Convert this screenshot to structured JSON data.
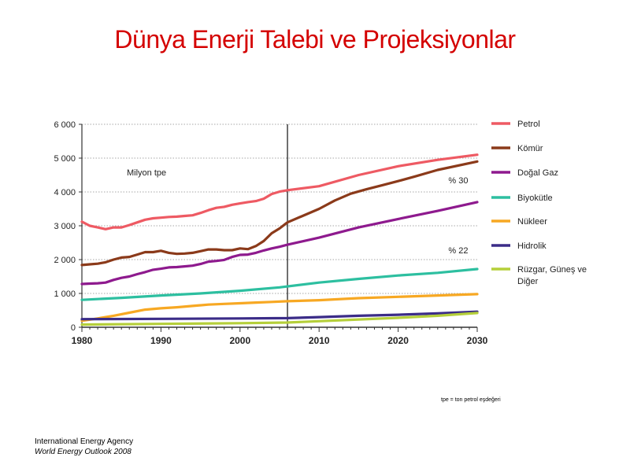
{
  "title": "Dünya Enerji Talebi ve Projeksiyonlar",
  "source": {
    "org": "International Energy Agency",
    "publication": "World Energy Outlook 2008"
  },
  "footnote": "tpe = ton petrol eşdeğeri",
  "chart_data": {
    "type": "line",
    "title": "",
    "unit_label": "Milyon tpe",
    "xlabel": "",
    "ylabel": "",
    "xlim": [
      1980,
      2030
    ],
    "ylim": [
      0,
      6000
    ],
    "x_ticks": [
      1980,
      1990,
      2000,
      2010,
      2020,
      2030
    ],
    "y_ticks": [
      0,
      1000,
      2000,
      3000,
      4000,
      5000,
      6000
    ],
    "y_tick_labels": [
      "0",
      "1 000",
      "2 000",
      "3 000",
      "4 000",
      "5 000",
      "6 000"
    ],
    "grid": "horizontal dotted",
    "legend": "right",
    "projection_start": 2006,
    "annotations": [
      {
        "text": "% 30",
        "x": 2028,
        "y": 4350
      },
      {
        "text": "% 22",
        "x": 2028,
        "y": 2280
      }
    ],
    "series": [
      {
        "name": "Petrol",
        "color": "#ee5a63",
        "x": [
          1980,
          1981,
          1982,
          1983,
          1984,
          1985,
          1986,
          1987,
          1988,
          1989,
          1990,
          1991,
          1992,
          1993,
          1994,
          1995,
          1996,
          1997,
          1998,
          1999,
          2000,
          2001,
          2002,
          2003,
          2004,
          2005,
          2006,
          2010,
          2015,
          2020,
          2025,
          2030
        ],
        "y": [
          3120,
          3000,
          2950,
          2900,
          2950,
          2950,
          3020,
          3100,
          3180,
          3220,
          3240,
          3260,
          3270,
          3290,
          3310,
          3380,
          3460,
          3530,
          3560,
          3620,
          3660,
          3700,
          3730,
          3800,
          3940,
          4010,
          4050,
          4170,
          4500,
          4760,
          4950,
          5100
        ]
      },
      {
        "name": "Kömür",
        "color": "#8b3a1a",
        "x": [
          1980,
          1981,
          1982,
          1983,
          1984,
          1985,
          1986,
          1987,
          1988,
          1989,
          1990,
          1991,
          1992,
          1993,
          1994,
          1995,
          1996,
          1997,
          1998,
          1999,
          2000,
          2001,
          2002,
          2003,
          2004,
          2005,
          2006,
          2008,
          2010,
          2012,
          2014,
          2016,
          2018,
          2020,
          2022,
          2025,
          2030
        ],
        "y": [
          1840,
          1860,
          1880,
          1920,
          2000,
          2060,
          2080,
          2150,
          2220,
          2220,
          2260,
          2200,
          2170,
          2180,
          2200,
          2250,
          2300,
          2300,
          2280,
          2280,
          2330,
          2310,
          2400,
          2550,
          2780,
          2920,
          3100,
          3300,
          3500,
          3750,
          3950,
          4080,
          4200,
          4320,
          4450,
          4650,
          4900
        ]
      },
      {
        "name": "Doğal Gaz",
        "color": "#8e1a8e",
        "x": [
          1980,
          1981,
          1982,
          1983,
          1984,
          1985,
          1986,
          1987,
          1988,
          1989,
          1990,
          1991,
          1992,
          1993,
          1994,
          1995,
          1996,
          1997,
          1998,
          1999,
          2000,
          2001,
          2002,
          2003,
          2004,
          2005,
          2006,
          2010,
          2015,
          2020,
          2025,
          2030
        ],
        "y": [
          1280,
          1290,
          1300,
          1320,
          1400,
          1460,
          1500,
          1570,
          1630,
          1700,
          1730,
          1770,
          1780,
          1800,
          1820,
          1870,
          1940,
          1960,
          1990,
          2080,
          2140,
          2150,
          2200,
          2270,
          2330,
          2380,
          2440,
          2650,
          2950,
          3200,
          3440,
          3700
        ]
      },
      {
        "name": "Biyokütle",
        "color": "#2dbfa0",
        "x": [
          1980,
          1985,
          1990,
          1995,
          2000,
          2005,
          2010,
          2015,
          2020,
          2025,
          2030
        ],
        "y": [
          810,
          870,
          940,
          1000,
          1080,
          1180,
          1320,
          1430,
          1530,
          1610,
          1720
        ]
      },
      {
        "name": "Nükleer",
        "color": "#f7a823",
        "x": [
          1980,
          1982,
          1984,
          1986,
          1988,
          1990,
          1992,
          1994,
          1996,
          1998,
          2000,
          2002,
          2004,
          2006,
          2010,
          2015,
          2020,
          2025,
          2030
        ],
        "y": [
          190,
          260,
          340,
          430,
          520,
          560,
          590,
          630,
          670,
          690,
          710,
          730,
          750,
          770,
          800,
          860,
          900,
          940,
          980
        ]
      },
      {
        "name": "Hidrolik",
        "color": "#3b2c88",
        "x": [
          1980,
          1990,
          2000,
          2006,
          2010,
          2015,
          2020,
          2025,
          2030
        ],
        "y": [
          240,
          250,
          260,
          270,
          300,
          340,
          370,
          410,
          460
        ]
      },
      {
        "name": "Rüzgar, Güneş ve Diğer",
        "color": "#b5cf3a",
        "x": [
          1980,
          1990,
          2000,
          2006,
          2010,
          2015,
          2020,
          2025,
          2030
        ],
        "y": [
          80,
          100,
          120,
          140,
          180,
          230,
          280,
          340,
          420
        ]
      }
    ]
  }
}
